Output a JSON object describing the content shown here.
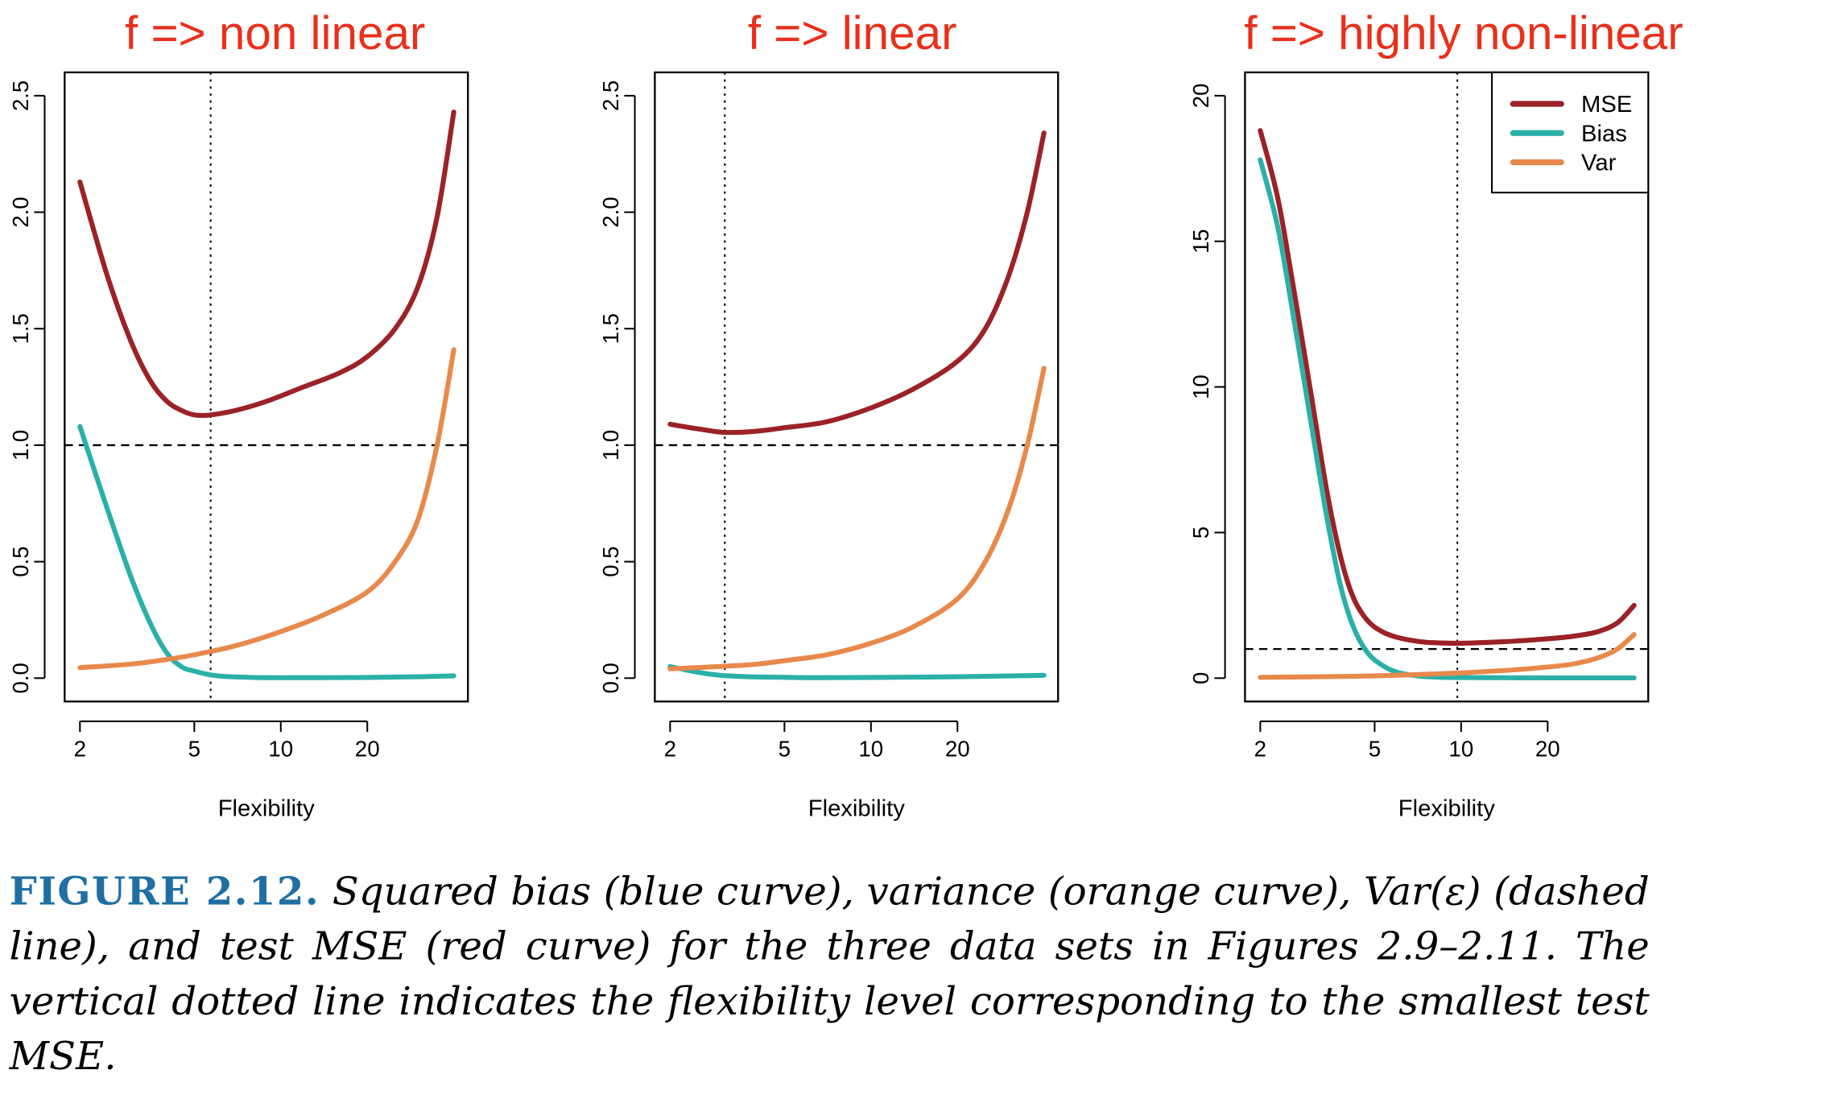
{
  "chart_data": [
    {
      "type": "line",
      "title": "f => non linear",
      "xlabel": "Flexibility",
      "ylabel": "",
      "xscale": "log",
      "xlim": [
        2,
        40
      ],
      "ylim": [
        0,
        2.5
      ],
      "x_ticks": [
        2,
        5,
        10,
        20
      ],
      "y_ticks": [
        0.0,
        0.5,
        1.0,
        1.5,
        2.0,
        2.5
      ],
      "y_tick_labels": [
        "0.0",
        "0.5",
        "1.0",
        "1.5",
        "2.0",
        "2.5"
      ],
      "hline": 1.0,
      "vline": 5.7,
      "legend": false,
      "series": [
        {
          "key": "mse",
          "color": "#9b2226",
          "points": [
            [
              2,
              2.13
            ],
            [
              2.5,
              1.72
            ],
            [
              3,
              1.45
            ],
            [
              3.5,
              1.28
            ],
            [
              4,
              1.19
            ],
            [
              4.5,
              1.15
            ],
            [
              5,
              1.13
            ],
            [
              5.7,
              1.13
            ],
            [
              7,
              1.15
            ],
            [
              9,
              1.19
            ],
            [
              12,
              1.25
            ],
            [
              16,
              1.31
            ],
            [
              20,
              1.38
            ],
            [
              25,
              1.5
            ],
            [
              30,
              1.68
            ],
            [
              35,
              1.98
            ],
            [
              40,
              2.43
            ]
          ]
        },
        {
          "key": "bias",
          "color": "#2ab0a8",
          "points": [
            [
              2,
              1.08
            ],
            [
              2.5,
              0.72
            ],
            [
              3,
              0.44
            ],
            [
              3.5,
              0.24
            ],
            [
              4,
              0.11
            ],
            [
              4.5,
              0.05
            ],
            [
              5,
              0.03
            ],
            [
              6,
              0.01
            ],
            [
              8,
              0.003
            ],
            [
              12,
              0.002
            ],
            [
              20,
              0.003
            ],
            [
              30,
              0.006
            ],
            [
              40,
              0.01
            ]
          ]
        },
        {
          "key": "var",
          "color": "#e8894c",
          "points": [
            [
              2,
              0.045
            ],
            [
              3,
              0.06
            ],
            [
              4,
              0.08
            ],
            [
              5,
              0.1
            ],
            [
              7,
              0.14
            ],
            [
              10,
              0.2
            ],
            [
              14,
              0.27
            ],
            [
              20,
              0.37
            ],
            [
              25,
              0.5
            ],
            [
              30,
              0.68
            ],
            [
              35,
              1.0
            ],
            [
              40,
              1.41
            ]
          ]
        }
      ]
    },
    {
      "type": "line",
      "title": "f => linear",
      "xlabel": "Flexibility",
      "ylabel": "",
      "xscale": "log",
      "xlim": [
        2,
        40
      ],
      "ylim": [
        0,
        2.5
      ],
      "x_ticks": [
        2,
        5,
        10,
        20
      ],
      "y_ticks": [
        0.0,
        0.5,
        1.0,
        1.5,
        2.0,
        2.5
      ],
      "y_tick_labels": [
        "0.0",
        "0.5",
        "1.0",
        "1.5",
        "2.0",
        "2.5"
      ],
      "hline": 1.0,
      "vline": 3.1,
      "legend": false,
      "series": [
        {
          "key": "mse",
          "color": "#9b2226",
          "points": [
            [
              2,
              1.09
            ],
            [
              2.5,
              1.07
            ],
            [
              3.1,
              1.055
            ],
            [
              4,
              1.06
            ],
            [
              5,
              1.075
            ],
            [
              7,
              1.1
            ],
            [
              10,
              1.16
            ],
            [
              14,
              1.24
            ],
            [
              20,
              1.36
            ],
            [
              25,
              1.5
            ],
            [
              30,
              1.72
            ],
            [
              35,
              2.0
            ],
            [
              40,
              2.34
            ]
          ]
        },
        {
          "key": "bias",
          "color": "#2ab0a8",
          "points": [
            [
              2,
              0.05
            ],
            [
              2.5,
              0.025
            ],
            [
              3,
              0.012
            ],
            [
              4,
              0.005
            ],
            [
              6,
              0.002
            ],
            [
              10,
              0.003
            ],
            [
              20,
              0.006
            ],
            [
              40,
              0.012
            ]
          ]
        },
        {
          "key": "var",
          "color": "#e8894c",
          "points": [
            [
              2,
              0.04
            ],
            [
              3,
              0.05
            ],
            [
              4,
              0.06
            ],
            [
              5,
              0.075
            ],
            [
              7,
              0.1
            ],
            [
              10,
              0.15
            ],
            [
              14,
              0.22
            ],
            [
              20,
              0.34
            ],
            [
              25,
              0.5
            ],
            [
              30,
              0.72
            ],
            [
              35,
              1.0
            ],
            [
              40,
              1.33
            ]
          ]
        }
      ]
    },
    {
      "type": "line",
      "title": "f => highly non-linear",
      "xlabel": "Flexibility",
      "ylabel": "",
      "xscale": "log",
      "xlim": [
        2,
        40
      ],
      "ylim": [
        0,
        20
      ],
      "x_ticks": [
        2,
        5,
        10,
        20
      ],
      "y_ticks": [
        0,
        5,
        10,
        15,
        20
      ],
      "y_tick_labels": [
        "0",
        "5",
        "10",
        "15",
        "20"
      ],
      "hline": 1.0,
      "vline": 9.7,
      "legend": true,
      "legend_position": "top-right",
      "series": [
        {
          "key": "mse",
          "name": "MSE",
          "color": "#9b2226",
          "points": [
            [
              2,
              18.8
            ],
            [
              2.3,
              16.5
            ],
            [
              2.6,
              13.5
            ],
            [
              3,
              9.8
            ],
            [
              3.4,
              6.5
            ],
            [
              3.8,
              4.2
            ],
            [
              4.2,
              2.8
            ],
            [
              4.7,
              2.0
            ],
            [
              5.3,
              1.6
            ],
            [
              6,
              1.4
            ],
            [
              7,
              1.27
            ],
            [
              8,
              1.22
            ],
            [
              10,
              1.2
            ],
            [
              14,
              1.25
            ],
            [
              20,
              1.35
            ],
            [
              25,
              1.45
            ],
            [
              30,
              1.6
            ],
            [
              35,
              1.9
            ],
            [
              40,
              2.5
            ]
          ]
        },
        {
          "key": "bias",
          "name": "Bias",
          "color": "#2ab0a8",
          "points": [
            [
              2,
              17.8
            ],
            [
              2.3,
              15.5
            ],
            [
              2.6,
              12.5
            ],
            [
              3,
              8.8
            ],
            [
              3.4,
              5.6
            ],
            [
              3.8,
              3.2
            ],
            [
              4.2,
              1.8
            ],
            [
              4.7,
              0.9
            ],
            [
              5.3,
              0.45
            ],
            [
              6,
              0.2
            ],
            [
              7,
              0.08
            ],
            [
              8,
              0.04
            ],
            [
              10,
              0.02
            ],
            [
              20,
              0.01
            ],
            [
              40,
              0.01
            ]
          ]
        },
        {
          "key": "var",
          "name": "Var",
          "color": "#e8894c",
          "points": [
            [
              2,
              0.03
            ],
            [
              4,
              0.06
            ],
            [
              6,
              0.1
            ],
            [
              10,
              0.18
            ],
            [
              14,
              0.26
            ],
            [
              20,
              0.38
            ],
            [
              25,
              0.5
            ],
            [
              30,
              0.7
            ],
            [
              35,
              1.0
            ],
            [
              40,
              1.5
            ]
          ]
        }
      ]
    }
  ],
  "caption": {
    "label": "FIGURE 2.12.",
    "text": "Squared bias (blue curve), variance (orange curve), Var(ε) (dashed line), and test MSE (red curve) for the three data sets in Figures 2.9–2.11. The vertical dotted line indicates the flexibility level corresponding to the smallest test MSE."
  }
}
